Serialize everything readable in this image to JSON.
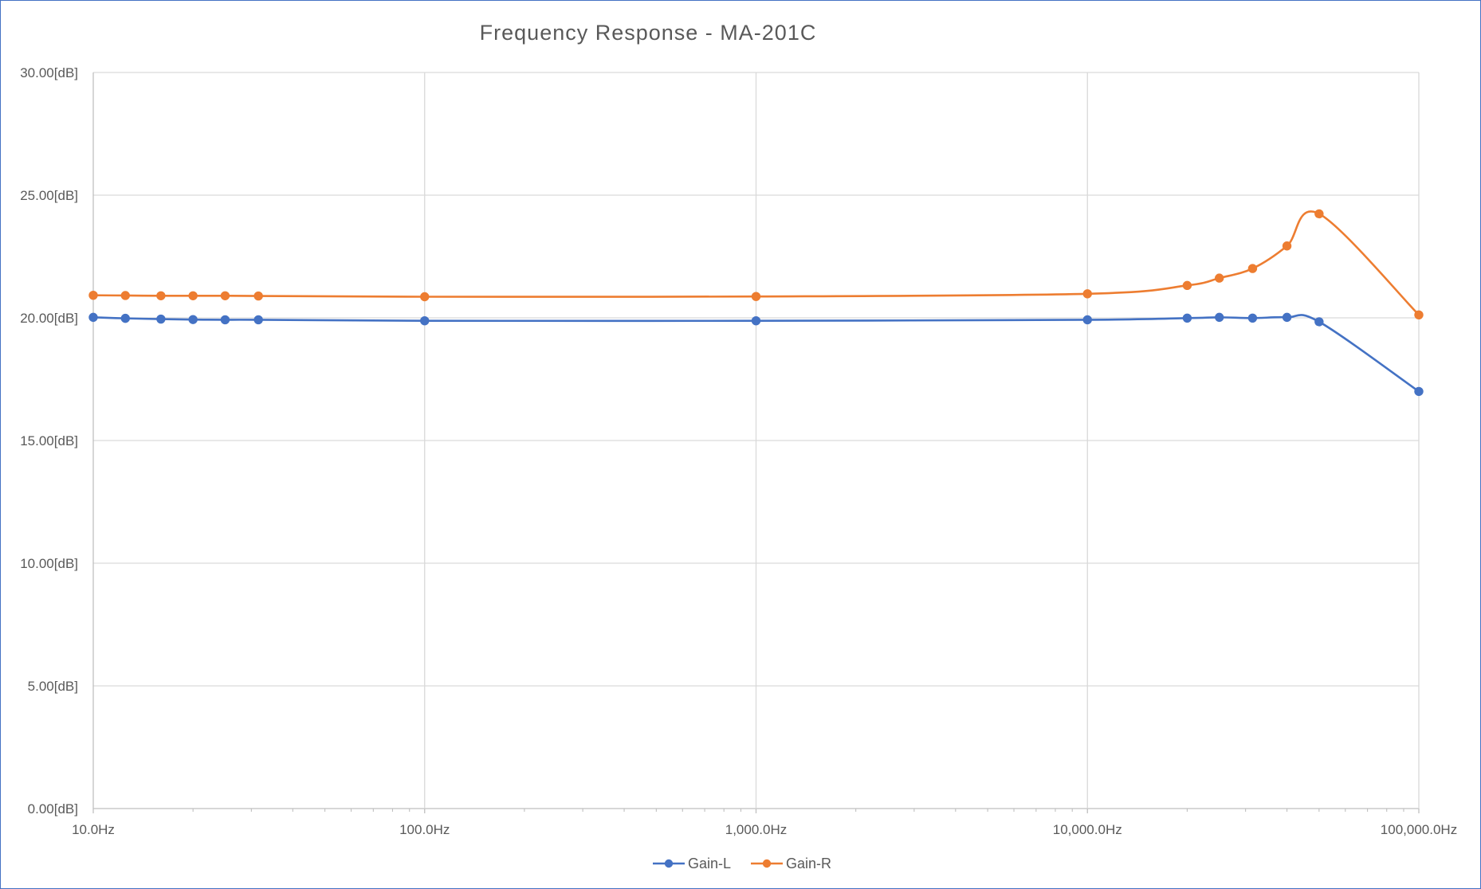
{
  "chart_data": {
    "type": "line",
    "title": "Frequency Response - MA-201C",
    "xlabel": "",
    "ylabel": "",
    "xscale": "log",
    "xlim": [
      10,
      100000
    ],
    "ylim": [
      0,
      30
    ],
    "grid": true,
    "legend_position": "bottom",
    "x_tick_labels": [
      "10.0Hz",
      "100.0Hz",
      "1,000.0Hz",
      "10,000.0Hz",
      "100,000.0Hz"
    ],
    "x_ticks": [
      10,
      100,
      1000,
      10000,
      100000
    ],
    "y_tick_labels": [
      "0.00[dB]",
      "5.00[dB]",
      "10.00[dB]",
      "15.00[dB]",
      "20.00[dB]",
      "25.00[dB]",
      "30.00[dB]"
    ],
    "y_ticks": [
      0,
      5,
      10,
      15,
      20,
      25,
      30
    ],
    "x": [
      10,
      12.5,
      16,
      20,
      25,
      31.5,
      100,
      1000,
      10000,
      20000,
      25000,
      31500,
      40000,
      50000,
      100000
    ],
    "series": [
      {
        "name": "Gain-L",
        "color": "#4472c4",
        "values": [
          20.02,
          19.98,
          19.95,
          19.93,
          19.92,
          19.92,
          19.88,
          19.88,
          19.92,
          19.99,
          20.02,
          19.99,
          20.02,
          19.84,
          17.0
        ]
      },
      {
        "name": "Gain-R",
        "color": "#ed7d31",
        "values": [
          20.92,
          20.91,
          20.9,
          20.9,
          20.9,
          20.89,
          20.86,
          20.87,
          20.98,
          21.32,
          21.62,
          22.01,
          22.93,
          24.24,
          20.12
        ]
      }
    ]
  }
}
